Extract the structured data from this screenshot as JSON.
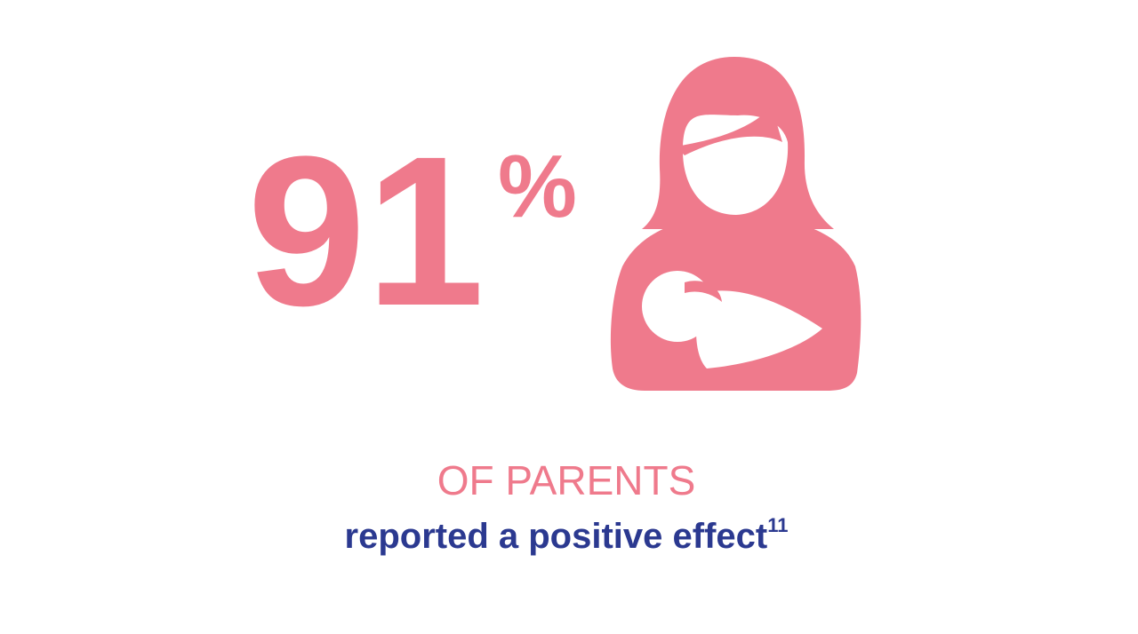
{
  "stat": {
    "number": "91",
    "unit": "%"
  },
  "caption": {
    "heading": "OF PARENTS",
    "text": "reported a positive effect",
    "footnote": "11"
  }
}
